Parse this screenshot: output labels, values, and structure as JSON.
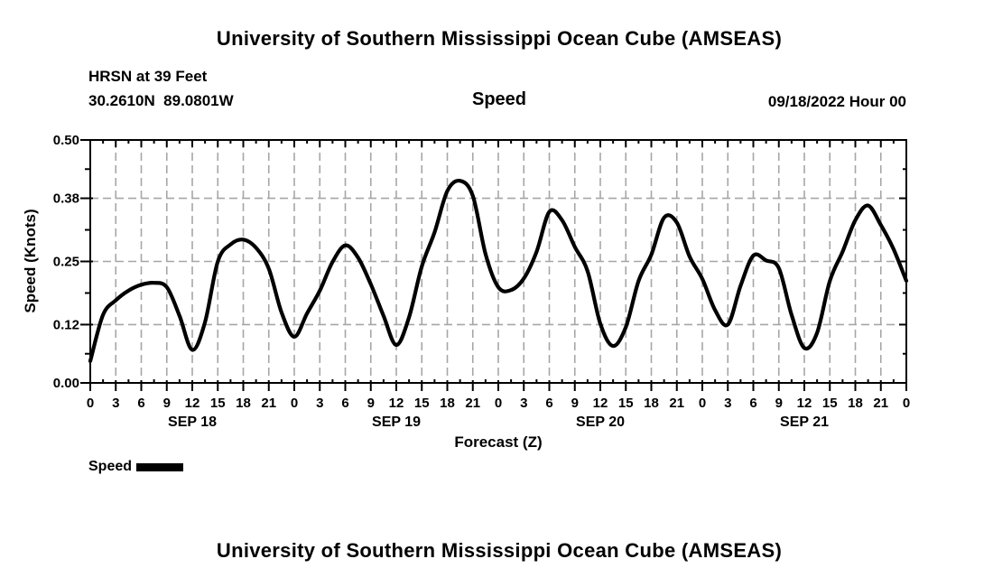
{
  "page": {
    "background": "#ffffff",
    "text_color": "#000000"
  },
  "header": {
    "title": "University of Southern Mississippi Ocean Cube (AMSEAS)",
    "station": "HRSN at 39 Feet",
    "coordinates": "30.2610N  89.0801W",
    "panel_label": "Speed",
    "run_label": "09/18/2022 Hour 00"
  },
  "legend": {
    "label": "Speed",
    "swatch_color": "#000000"
  },
  "footer": {
    "next_chart_title": "University of Southern Mississippi Ocean Cube (AMSEAS)"
  },
  "chart_data": {
    "type": "line",
    "title": "Speed",
    "xlabel": "Forecast (Z)",
    "ylabel": "Speed (Knots)",
    "run_start": "09/18/2022 Hour 00",
    "ylim": [
      0.0,
      0.5
    ],
    "y_ticks": {
      "values": [
        0.0,
        0.12,
        0.25,
        0.38,
        0.5
      ],
      "labels": [
        "0.00",
        "0.12",
        "0.25",
        "0.38",
        "0.50"
      ]
    },
    "x_hours_range": [
      0,
      96
    ],
    "x_major_step_hours": 3,
    "x_minor_step_hours": 1.5,
    "x_tick_labels": [
      "0",
      "3",
      "6",
      "9",
      "12",
      "15",
      "18",
      "21",
      "0",
      "3",
      "6",
      "9",
      "12",
      "15",
      "18",
      "21",
      "0",
      "3",
      "6",
      "9",
      "12",
      "15",
      "18",
      "21",
      "0",
      "3",
      "6",
      "9",
      "12",
      "15",
      "18",
      "21",
      "0"
    ],
    "day_labels": [
      {
        "label": "SEP 18",
        "center_hour": 12
      },
      {
        "label": "SEP 19",
        "center_hour": 36
      },
      {
        "label": "SEP 20",
        "center_hour": 60
      },
      {
        "label": "SEP 21",
        "center_hour": 84
      }
    ],
    "grid": {
      "show": true,
      "style": "dashed",
      "color": "#a6a6a6"
    },
    "legend_position": "bottom-left",
    "series": [
      {
        "name": "Speed",
        "color": "#000000",
        "x_hours": [
          0,
          1.5,
          3,
          4.5,
          6,
          7.5,
          9,
          10.5,
          12,
          13.5,
          15,
          16.5,
          18,
          19.5,
          21,
          22.5,
          24,
          25.5,
          27,
          28.5,
          30,
          31.5,
          33,
          34.5,
          36,
          37.5,
          39,
          40.5,
          42,
          43.5,
          45,
          46.5,
          48,
          49.5,
          51,
          52.5,
          54,
          55.5,
          57,
          58.5,
          60,
          61.5,
          63,
          64.5,
          66,
          67.5,
          69,
          70.5,
          72,
          73.5,
          75,
          76.5,
          78,
          79.5,
          81,
          82.5,
          84,
          85.5,
          87,
          88.5,
          90,
          91.5,
          93,
          94.5,
          96
        ],
        "values": [
          0.045,
          0.14,
          0.17,
          0.19,
          0.202,
          0.206,
          0.197,
          0.138,
          0.068,
          0.125,
          0.25,
          0.285,
          0.295,
          0.278,
          0.235,
          0.145,
          0.095,
          0.143,
          0.19,
          0.249,
          0.283,
          0.258,
          0.203,
          0.138,
          0.078,
          0.135,
          0.24,
          0.31,
          0.395,
          0.416,
          0.385,
          0.265,
          0.197,
          0.191,
          0.215,
          0.27,
          0.352,
          0.335,
          0.28,
          0.23,
          0.122,
          0.076,
          0.115,
          0.21,
          0.264,
          0.34,
          0.33,
          0.26,
          0.214,
          0.15,
          0.12,
          0.2,
          0.262,
          0.252,
          0.236,
          0.14,
          0.072,
          0.103,
          0.21,
          0.27,
          0.335,
          0.365,
          0.325,
          0.275,
          0.21
        ]
      }
    ]
  }
}
